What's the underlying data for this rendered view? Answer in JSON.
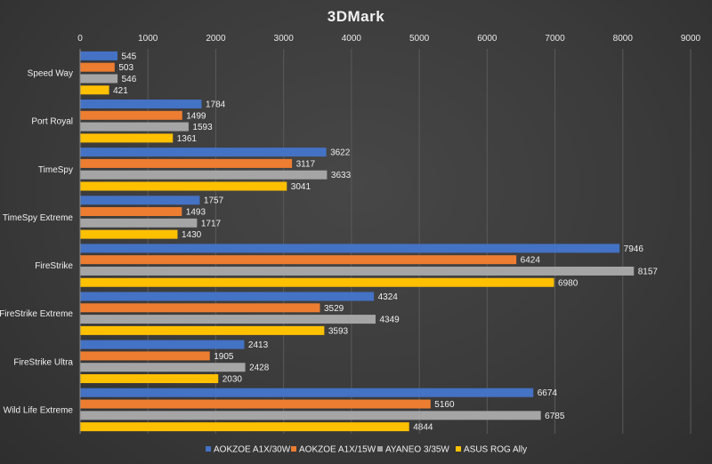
{
  "chart_data": {
    "type": "bar",
    "orientation": "horizontal",
    "title": "3DMark",
    "xlim": [
      0,
      9000
    ],
    "xticks": [
      0,
      1000,
      2000,
      3000,
      4000,
      5000,
      6000,
      7000,
      8000,
      9000
    ],
    "x_axis_position": "top",
    "grid": true,
    "legend_position": "bottom",
    "categories": [
      "Speed Way",
      "Port Royal",
      "TimeSpy",
      "TimeSpy Extreme",
      "FireStrike",
      "FireStrike Extreme",
      "FireStrike Ultra",
      "Wild Life Extreme"
    ],
    "series": [
      {
        "name": "AOKZOE A1X/30W",
        "color": "#4472c4",
        "values": [
          545,
          1784,
          3622,
          1757,
          7946,
          4324,
          2413,
          6674
        ]
      },
      {
        "name": "AOKZOE A1X/15W",
        "color": "#ed7d31",
        "values": [
          503,
          1499,
          3117,
          1493,
          6424,
          3529,
          1905,
          5160
        ]
      },
      {
        "name": "AYANEO 3/35W",
        "color": "#a5a5a5",
        "values": [
          546,
          1593,
          3633,
          1717,
          8157,
          4349,
          2428,
          6785
        ]
      },
      {
        "name": "ASUS ROG Ally",
        "color": "#ffc000",
        "values": [
          421,
          1361,
          3041,
          1430,
          6980,
          3593,
          2030,
          4844
        ]
      }
    ]
  }
}
